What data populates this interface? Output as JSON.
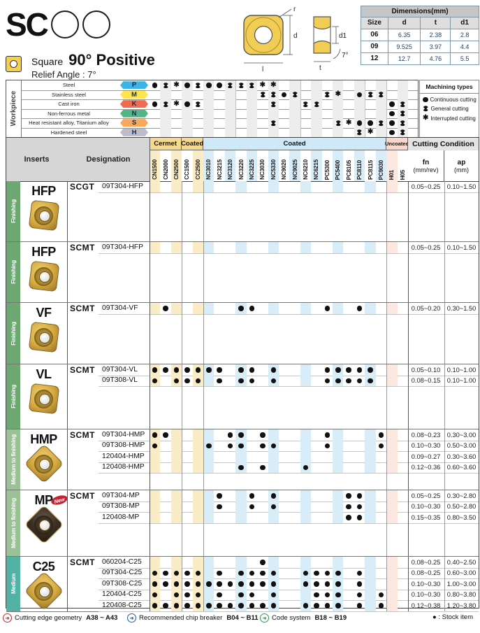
{
  "header": {
    "series": "SC",
    "shape_word": "Square",
    "title": "90° Positive",
    "relief": "Relief Angle : 7°",
    "diagram": {
      "r": "r",
      "d": "d",
      "l": "l",
      "d1": "d1",
      "t": "t",
      "angle": "7°"
    }
  },
  "dimensions": {
    "title": "Dimensions(mm)",
    "columns": [
      "Size",
      "d",
      "t",
      "d1"
    ],
    "rows": [
      [
        "06",
        "6.35",
        "2.38",
        "2.8"
      ],
      [
        "09",
        "9.525",
        "3.97",
        "4.4"
      ],
      [
        "12",
        "12.7",
        "4.76",
        "5.5"
      ]
    ]
  },
  "workpiece": {
    "label": "Workpiece",
    "rows": [
      {
        "name": "Steel",
        "code": "P",
        "color": "#3cb4e5",
        "marks": "cgicgccgggii............"
      },
      {
        "name": "Stainless steel",
        "code": "M",
        "color": "#ffe44d",
        "marks": "..........ggcg..gi.cgg.."
      },
      {
        "name": "Cast iron",
        "code": "K",
        "color": "#f26a50",
        "marks": "cgicg......g..gg......cg"
      },
      {
        "name": "Non-ferrous metal",
        "code": "N",
        "color": "#52b583",
        "marks": "......................cg"
      },
      {
        "name": "Heat resistant alloy, Titanium alloy",
        "code": "S",
        "color": "#f9a75a",
        "marks": "...........g.....giccgcg"
      },
      {
        "name": "Hardened steel",
        "code": "H",
        "color": "#bcbcca",
        "marks": "...................gi.cg"
      }
    ],
    "legend": {
      "title": "Machining types",
      "items": [
        {
          "sym": "c",
          "label": "Continuous cutting"
        },
        {
          "sym": "g",
          "label": "General cutting"
        },
        {
          "sym": "i",
          "label": "Interrupted cutting"
        }
      ]
    }
  },
  "grades": {
    "groups": [
      {
        "label": "Cermet",
        "cols": 3,
        "cls": "tan"
      },
      {
        "label": "Coated",
        "cols": 2,
        "cls": "tan"
      },
      {
        "label": "Coated",
        "cols": 17,
        "cls": "blue"
      },
      {
        "label": "Uncoated",
        "cols": 2,
        "cls": "pink"
      }
    ],
    "columns": [
      "CN1500",
      "CN2000",
      "CN2500",
      "CC1500",
      "CC2500",
      "NC3010",
      "NC3215",
      "NC3120",
      "NC3220",
      "NC3225",
      "NC3030",
      "NC5330",
      "NC9020",
      "NC9025",
      "NC6210",
      "NC6215",
      "PC5300",
      "PC5400",
      "PC8105",
      "PC8110",
      "PC8115",
      "PC9030",
      "H01",
      "H05"
    ]
  },
  "table": {
    "inserts_header": "Inserts",
    "designation_header": "Designation",
    "cutting_header": "Cutting Condition",
    "fn_label": "fn",
    "fn_unit": "(mm/rev)",
    "ap_label": "ap",
    "ap_unit": "(mm)",
    "blocks": [
      {
        "type": "HFP",
        "cls": "Finishing",
        "cls_color": "#6da771",
        "prefix": "SCGT",
        "shape": "square",
        "finish": "gold",
        "h": 86,
        "rows": [
          {
            "suffix": "09T304-HFP",
            "fn": "0.05~0.25",
            "ap": "0.10~1.50",
            "dots": []
          }
        ]
      },
      {
        "type": "HFP",
        "cls": "Finishing",
        "cls_color": "#6da771",
        "prefix": "SCMT",
        "shape": "square",
        "finish": "gold",
        "h": 86,
        "rows": [
          {
            "suffix": "09T304-HFP",
            "fn": "0.05~0.25",
            "ap": "0.10~1.50",
            "dots": []
          }
        ]
      },
      {
        "type": "VF",
        "cls": "Finishing",
        "cls_color": "#6da771",
        "prefix": "SCMT",
        "shape": "square",
        "finish": "gold",
        "h": 87,
        "rows": [
          {
            "suffix": "09T304-VF",
            "fn": "0.05~0.20",
            "ap": "0.30~1.50",
            "dots": [
              2,
              9,
              10,
              17,
              20
            ]
          }
        ]
      },
      {
        "type": "VL",
        "cls": "Finishing",
        "cls_color": "#6da771",
        "prefix": "SCMT",
        "shape": "square",
        "finish": "gold",
        "h": 92,
        "rows": [
          {
            "suffix": "09T304-VL",
            "fn": "0.05~0.10",
            "ap": "0.10~1.00",
            "dots": [
              1,
              2,
              3,
              4,
              5,
              6,
              7,
              9,
              10,
              12,
              17,
              18,
              19,
              20,
              21
            ]
          },
          {
            "suffix": "09T308-VL",
            "fn": "0.08~0.15",
            "ap": "0.10~1.00",
            "dots": [
              1,
              3,
              4,
              5,
              7,
              9,
              10,
              12,
              17,
              18,
              19,
              20,
              21
            ]
          }
        ]
      },
      {
        "type": "HMP",
        "cls": "Medium to finishing",
        "cls_color": "#9cc098",
        "prefix": "SCMT",
        "shape": "diamond",
        "finish": "gold",
        "h": 86,
        "rows": [
          {
            "suffix": "09T304-HMP",
            "fn": "0.08~0.23",
            "ap": "0.30~3.00",
            "dots": [
              1,
              2,
              8,
              9,
              11,
              17,
              22
            ]
          },
          {
            "suffix": "09T308-HMP",
            "fn": "0.10~0.30",
            "ap": "0.50~3.00",
            "dots": [
              1,
              6,
              8,
              9,
              11,
              12,
              17,
              22
            ]
          },
          {
            "suffix": "120404-HMP",
            "fn": "0.09~0.27",
            "ap": "0.30~3.60",
            "dots": []
          },
          {
            "suffix": "120408-HMP",
            "fn": "0.12~0.36",
            "ap": "0.60~3.60",
            "dots": [
              9,
              11,
              15
            ]
          }
        ]
      },
      {
        "type": "MP",
        "cls": "Medium to finishing",
        "cls_color": "#9cc098",
        "prefix": "SCMT",
        "shape": "diamond",
        "finish": "dark",
        "badge": "New",
        "h": 94,
        "rows": [
          {
            "suffix": "09T304-MP",
            "fn": "0.05~0.25",
            "ap": "0.30~2.80",
            "dots": [
              7,
              10,
              12,
              19,
              20
            ]
          },
          {
            "suffix": "09T308-MP",
            "fn": "0.10~0.30",
            "ap": "0.50~2.80",
            "dots": [
              7,
              10,
              12,
              19,
              20
            ]
          },
          {
            "suffix": "120408-MP",
            "fn": "0.15~0.35",
            "ap": "0.80~3.50",
            "dots": [
              19,
              20
            ]
          }
        ]
      },
      {
        "type": "C25",
        "cls": "Medium",
        "cls_color": "#54b1a6",
        "prefix": "SCMT",
        "shape": "diamond",
        "finish": "gold",
        "h": 78,
        "rows": [
          {
            "suffix": "060204-C25",
            "fn": "0.08~0.25",
            "ap": "0.40~2.50",
            "dots": [
              11
            ]
          },
          {
            "suffix": "09T304-C25",
            "fn": "0.08~0.25",
            "ap": "0.60~3.00",
            "dots": [
              1,
              2,
              3,
              4,
              5,
              7,
              9,
              10,
              11,
              12,
              15,
              16,
              17,
              18,
              20
            ]
          },
          {
            "suffix": "09T308-C25",
            "fn": "0.10~0.30",
            "ap": "1.00~3.00",
            "dots": [
              1,
              2,
              3,
              4,
              5,
              6,
              7,
              8,
              9,
              10,
              11,
              12,
              15,
              16,
              17,
              18,
              20
            ]
          },
          {
            "suffix": "120404-C25",
            "fn": "0.10~0.30",
            "ap": "0.80~3.80",
            "dots": [
              1,
              3,
              4,
              5,
              7,
              9,
              10,
              12,
              16,
              17,
              18,
              20,
              22
            ]
          },
          {
            "suffix": "120408-C25",
            "fn": "0.12~0.38",
            "ap": "1.20~3.80",
            "dots": [
              1,
              2,
              3,
              4,
              5,
              6,
              7,
              8,
              9,
              10,
              11,
              12,
              15,
              16,
              17,
              18,
              20,
              22
            ]
          }
        ]
      }
    ]
  },
  "footer": {
    "items": [
      {
        "color": "#cb2128",
        "label": "Cutting edge geometry",
        "ref": "A38 ~ A43"
      },
      {
        "color": "#1c60a8",
        "label": "Recommended chip breaker",
        "ref": "B04 ~ B11"
      },
      {
        "color": "#2f9a44",
        "label": "Code system",
        "ref": "B18 ~ B19"
      }
    ],
    "stock": "● : Stock item"
  }
}
